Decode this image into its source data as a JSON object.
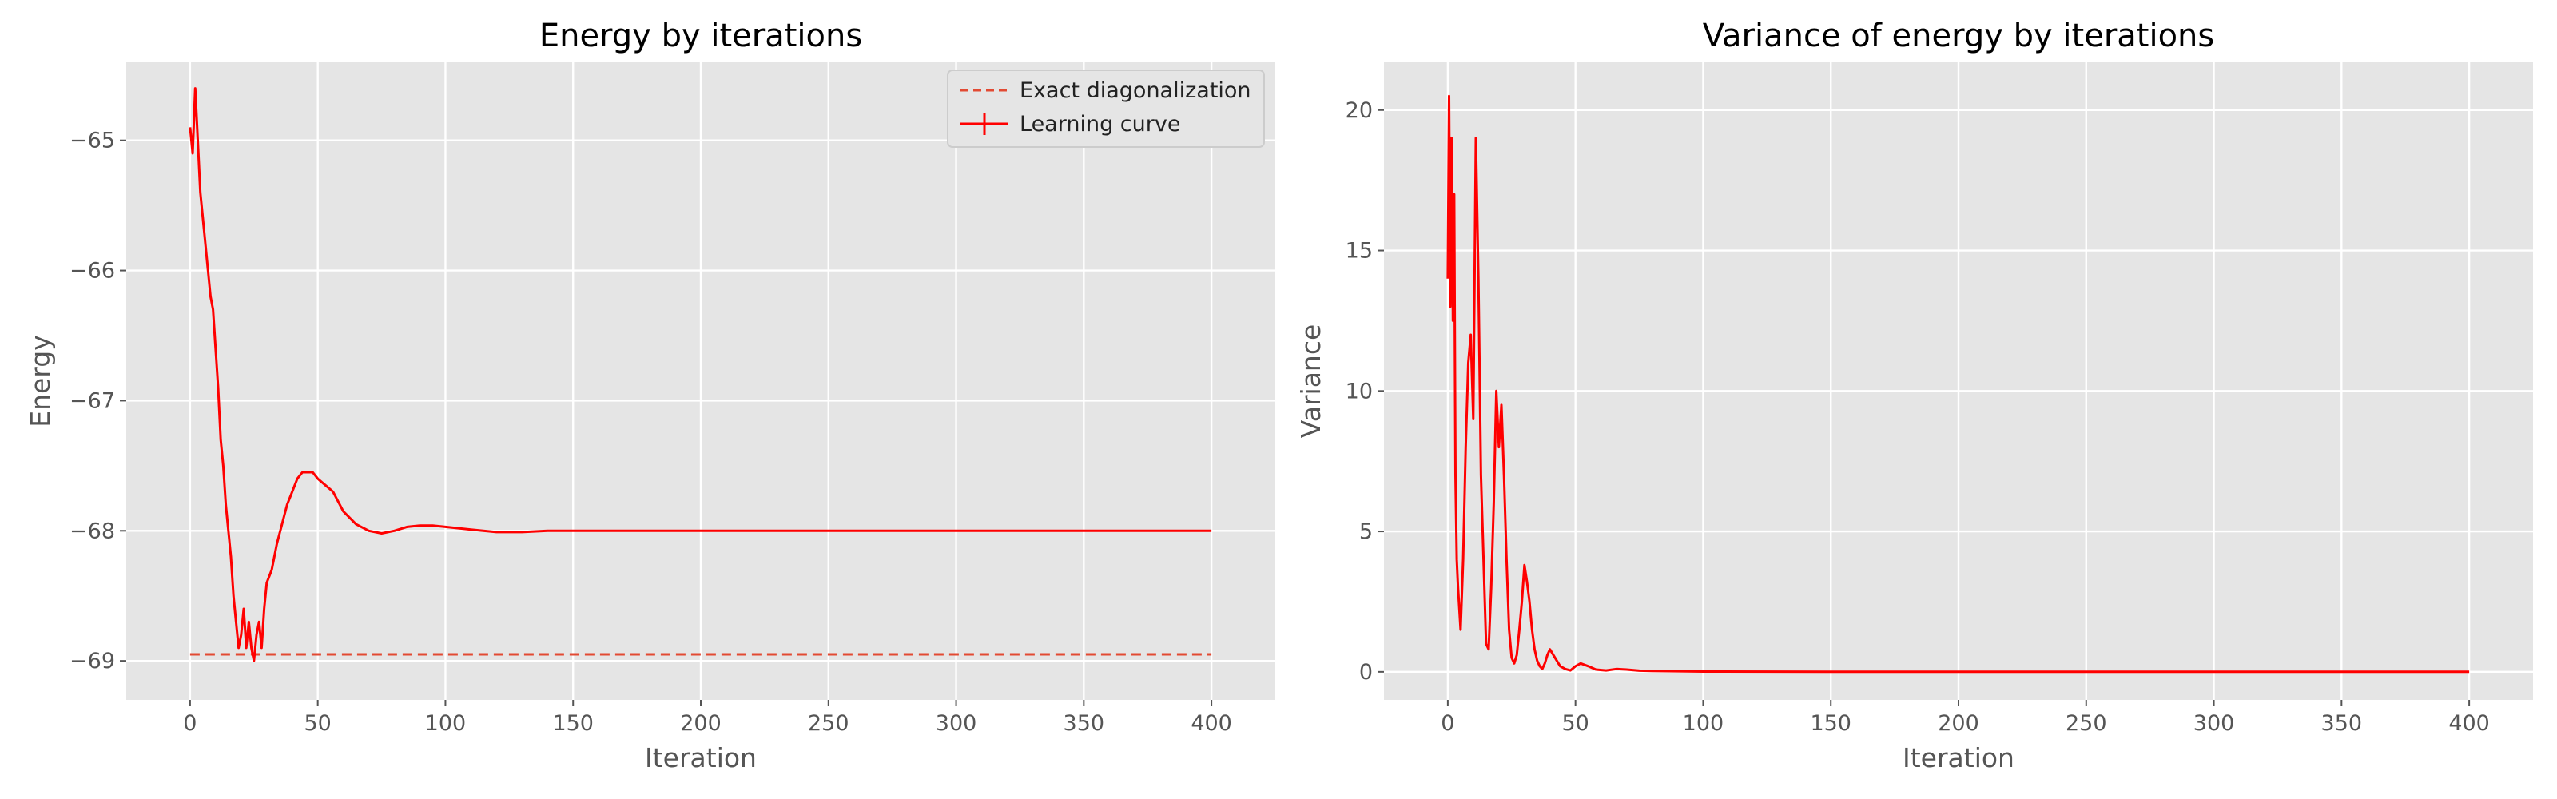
{
  "chart_data": [
    {
      "type": "line",
      "title": "Energy by iterations",
      "xlabel": "Iteration",
      "ylabel": "Energy",
      "xlim": [
        -25,
        425
      ],
      "ylim": [
        -69.3,
        -64.4
      ],
      "xticks": [
        0,
        50,
        100,
        150,
        200,
        250,
        300,
        350,
        400
      ],
      "yticks": [
        -69,
        -68,
        -67,
        -66,
        -65
      ],
      "xtick_labels": [
        "0",
        "50",
        "100",
        "150",
        "200",
        "250",
        "300",
        "350",
        "400"
      ],
      "ytick_labels": [
        "−69",
        "−68",
        "−67",
        "−66",
        "−65"
      ],
      "grid": true,
      "legend": "top-right",
      "series": [
        {
          "name": "Exact diagonalization",
          "style": "dashed",
          "color": "#e24a33",
          "x": [
            0,
            400
          ],
          "y": [
            -68.95,
            -68.95
          ]
        },
        {
          "name": "Learning curve",
          "style": "solid",
          "color": "#ff0000",
          "x": [
            0,
            1,
            2,
            3,
            4,
            5,
            6,
            7,
            8,
            9,
            10,
            11,
            12,
            13,
            14,
            15,
            16,
            17,
            18,
            19,
            20,
            21,
            22,
            23,
            24,
            25,
            26,
            27,
            28,
            29,
            30,
            32,
            34,
            36,
            38,
            40,
            42,
            44,
            46,
            48,
            50,
            53,
            56,
            60,
            65,
            70,
            75,
            80,
            85,
            90,
            95,
            100,
            110,
            120,
            130,
            140,
            150,
            200,
            250,
            300,
            350,
            400
          ],
          "y": [
            -64.9,
            -65.1,
            -64.6,
            -65.0,
            -65.4,
            -65.6,
            -65.8,
            -66.0,
            -66.2,
            -66.3,
            -66.6,
            -66.9,
            -67.3,
            -67.5,
            -67.8,
            -68.0,
            -68.2,
            -68.5,
            -68.7,
            -68.9,
            -68.8,
            -68.6,
            -68.9,
            -68.7,
            -68.9,
            -69.0,
            -68.8,
            -68.7,
            -68.9,
            -68.6,
            -68.4,
            -68.3,
            -68.1,
            -67.95,
            -67.8,
            -67.7,
            -67.6,
            -67.55,
            -67.55,
            -67.55,
            -67.6,
            -67.65,
            -67.7,
            -67.85,
            -67.95,
            -68.0,
            -68.02,
            -68.0,
            -67.97,
            -67.96,
            -67.96,
            -67.97,
            -67.99,
            -68.01,
            -68.01,
            -68.0,
            -68.0,
            -68.0,
            -68.0,
            -68.0,
            -68.0,
            -68.0
          ]
        }
      ]
    },
    {
      "type": "line",
      "title": "Variance of energy by iterations",
      "xlabel": "Iteration",
      "ylabel": "Variance",
      "xlim": [
        -25,
        425
      ],
      "ylim": [
        -1.0,
        21.7
      ],
      "xticks": [
        0,
        50,
        100,
        150,
        200,
        250,
        300,
        350,
        400
      ],
      "yticks": [
        0,
        5,
        10,
        15,
        20
      ],
      "xtick_labels": [
        "0",
        "50",
        "100",
        "150",
        "200",
        "250",
        "300",
        "350",
        "400"
      ],
      "ytick_labels": [
        "0",
        "5",
        "10",
        "15",
        "20"
      ],
      "grid": true,
      "series": [
        {
          "style": "solid",
          "color": "#ff0000",
          "x": [
            0,
            0.5,
            1,
            1.5,
            2,
            2.5,
            3,
            3.5,
            4,
            5,
            6,
            7,
            8,
            9,
            10,
            11,
            12,
            13,
            14,
            15,
            16,
            17,
            18,
            19,
            20,
            21,
            22,
            23,
            24,
            25,
            26,
            27,
            28,
            29,
            30,
            31,
            32,
            33,
            34,
            35,
            36,
            37,
            38,
            39,
            40,
            42,
            44,
            46,
            48,
            50,
            52,
            55,
            58,
            62,
            66,
            70,
            75,
            80,
            90,
            100,
            150,
            200,
            250,
            300,
            350,
            400
          ],
          "y": [
            14.0,
            20.5,
            13.0,
            19.0,
            12.5,
            17.0,
            7.0,
            4.0,
            3.0,
            1.5,
            4.0,
            8.0,
            11.0,
            12.0,
            9.0,
            19.0,
            14.0,
            7.0,
            4.0,
            1.0,
            0.8,
            3.0,
            6.0,
            10.0,
            8.0,
            9.5,
            7.0,
            4.0,
            1.5,
            0.5,
            0.3,
            0.6,
            1.5,
            2.5,
            3.8,
            3.2,
            2.5,
            1.5,
            0.8,
            0.4,
            0.2,
            0.1,
            0.3,
            0.6,
            0.8,
            0.5,
            0.2,
            0.1,
            0.05,
            0.2,
            0.3,
            0.2,
            0.08,
            0.05,
            0.1,
            0.08,
            0.04,
            0.03,
            0.02,
            0.01,
            0.0,
            0.0,
            0.0,
            0.0,
            0.0,
            0.0
          ]
        }
      ]
    }
  ]
}
